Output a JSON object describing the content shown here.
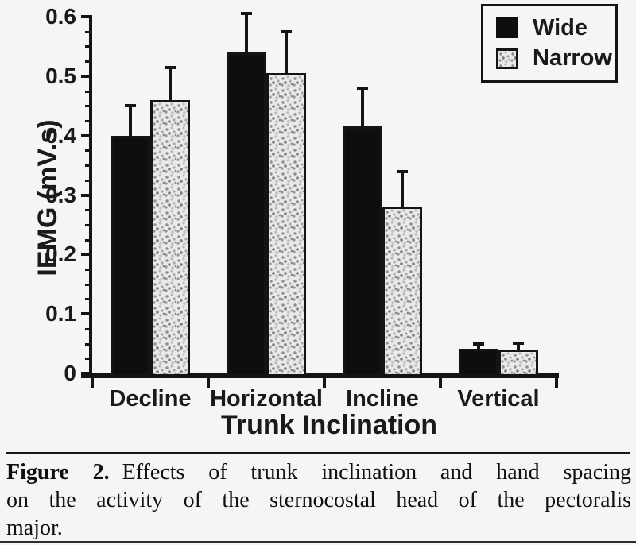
{
  "colors": {
    "bar_black": "#0e0e0e",
    "axis": "#141414",
    "stipple_base": "#e9e9e9",
    "background": "#f5f5f7"
  },
  "chart_data": {
    "type": "bar",
    "title": "",
    "xlabel": "Trunk Inclination",
    "ylabel": "IEMG (mV.s)",
    "ylim": [
      0,
      0.6
    ],
    "y_tick_values": [
      0,
      0.1,
      0.2,
      0.3,
      0.4,
      0.5,
      0.6
    ],
    "y_tick_labels": [
      "0",
      "0.1",
      "0.2",
      "0.3",
      "0.4",
      "0.5",
      "0.6"
    ],
    "y_minor_step": 0.025,
    "grid": false,
    "legend_position": "top-right",
    "categories": [
      "Decline",
      "Horizontal",
      "Incline",
      "Vertical"
    ],
    "series": [
      {
        "name": "Wide",
        "fill": "solid",
        "values": [
          0.4,
          0.54,
          0.415,
          0.042
        ],
        "errors": [
          0.05,
          0.065,
          0.065,
          0.008
        ]
      },
      {
        "name": "Narrow",
        "fill": "stipple",
        "values": [
          0.46,
          0.505,
          0.28,
          0.04
        ],
        "errors": [
          0.055,
          0.07,
          0.06,
          0.011
        ]
      }
    ]
  },
  "caption": {
    "label": "Figure 2.",
    "lines": [
      "Effects of trunk inclination and hand spacing",
      "on the activity of the sternocostal head of the pectoralis",
      "major."
    ]
  }
}
